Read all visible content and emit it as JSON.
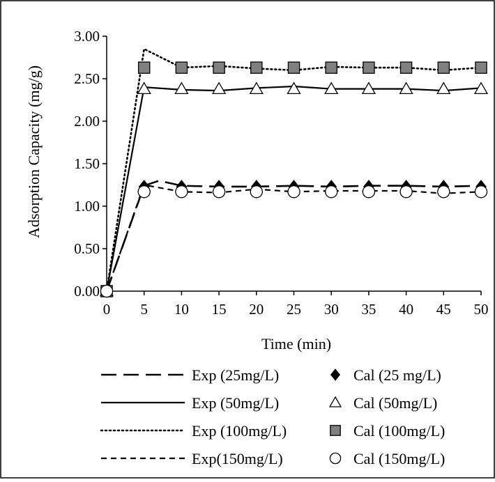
{
  "chart_data": {
    "type": "line",
    "title": "",
    "xlabel": "Time (min)",
    "ylabel": "Adsorption Capacity (mg/g)",
    "xlim": [
      0,
      50
    ],
    "ylim": [
      0,
      3
    ],
    "x_ticks": [
      "0",
      "5",
      "10",
      "15",
      "20",
      "25",
      "30",
      "35",
      "40",
      "45",
      "50"
    ],
    "y_ticks": [
      "0.00",
      "0.50",
      "1.00",
      "1.50",
      "2.00",
      "2.50",
      "3.00"
    ],
    "grid": false,
    "legend_position": "bottom",
    "series": [
      {
        "name": "Exp (25mg/L)",
        "kind": "line",
        "style": "long-dash",
        "x": [
          0,
          5,
          7,
          10,
          15,
          20,
          25,
          30,
          35,
          40,
          45,
          50
        ],
        "y": [
          0.0,
          1.24,
          1.3,
          1.24,
          1.23,
          1.23,
          1.24,
          1.23,
          1.24,
          1.24,
          1.23,
          1.24
        ]
      },
      {
        "name": "Exp (50mg/L)",
        "kind": "line",
        "style": "solid",
        "x": [
          0,
          5,
          10,
          15,
          20,
          25,
          30,
          35,
          40,
          45,
          50
        ],
        "y": [
          0.0,
          2.4,
          2.37,
          2.36,
          2.39,
          2.41,
          2.38,
          2.38,
          2.38,
          2.36,
          2.39
        ]
      },
      {
        "name": "Exp (100mg/L)",
        "kind": "line",
        "style": "dotted",
        "x": [
          0,
          5,
          10,
          15,
          20,
          25,
          30,
          35,
          40,
          45,
          50
        ],
        "y": [
          0.0,
          2.85,
          2.63,
          2.65,
          2.62,
          2.6,
          2.64,
          2.63,
          2.63,
          2.6,
          2.63
        ]
      },
      {
        "name": "Exp(150mg/L)",
        "kind": "line",
        "style": "short-dash",
        "x": [
          0,
          5,
          10,
          15,
          20,
          25,
          30,
          35,
          40,
          45,
          50
        ],
        "y": [
          0.0,
          1.25,
          1.17,
          1.16,
          1.2,
          1.17,
          1.18,
          1.18,
          1.18,
          1.15,
          1.17
        ]
      },
      {
        "name": "Cal (25 mg/L)",
        "kind": "marker",
        "marker": "diamond",
        "x": [
          0,
          5,
          10,
          15,
          20,
          25,
          30,
          35,
          40,
          45,
          50
        ],
        "y": [
          0.0,
          1.23,
          1.23,
          1.23,
          1.23,
          1.23,
          1.23,
          1.23,
          1.23,
          1.23,
          1.23
        ]
      },
      {
        "name": "Cal (50mg/L)",
        "kind": "marker",
        "marker": "triangle",
        "x": [
          0,
          5,
          10,
          15,
          20,
          25,
          30,
          35,
          40,
          45,
          50
        ],
        "y": [
          0.0,
          2.38,
          2.38,
          2.38,
          2.38,
          2.38,
          2.38,
          2.38,
          2.38,
          2.38,
          2.38
        ]
      },
      {
        "name": "Cal (100mg/L)",
        "kind": "marker",
        "marker": "square",
        "x": [
          0,
          5,
          10,
          15,
          20,
          25,
          30,
          35,
          40,
          45,
          50
        ],
        "y": [
          0.0,
          2.63,
          2.63,
          2.63,
          2.63,
          2.63,
          2.63,
          2.63,
          2.63,
          2.63,
          2.63
        ]
      },
      {
        "name": "Cal (150mg/L)",
        "kind": "marker",
        "marker": "circle",
        "x": [
          0,
          5,
          10,
          15,
          20,
          25,
          30,
          35,
          40,
          45,
          50
        ],
        "y": [
          0.0,
          1.17,
          1.17,
          1.17,
          1.17,
          1.17,
          1.17,
          1.17,
          1.17,
          1.17,
          1.17
        ]
      }
    ]
  },
  "colors": {
    "line": "#000000",
    "square_fill": "#808080",
    "marker_stroke": "#000000",
    "background": "#ffffff"
  }
}
